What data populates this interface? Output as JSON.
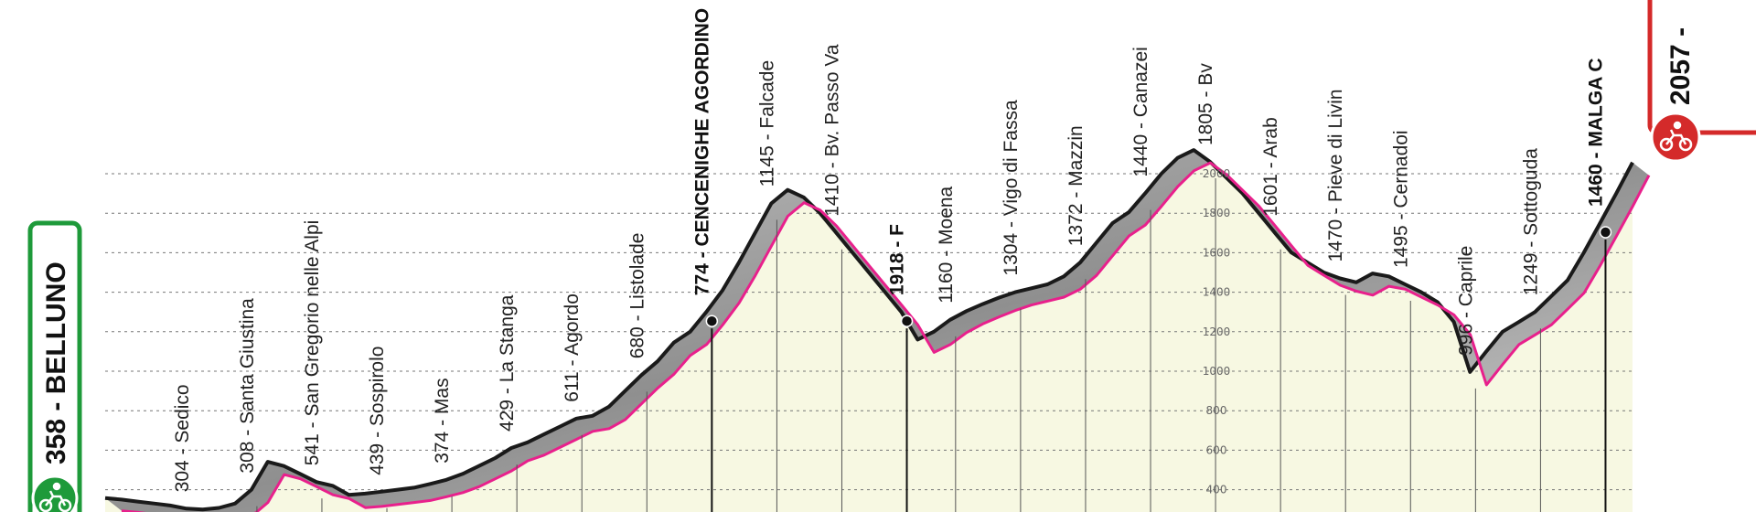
{
  "start": {
    "name": "BELLUNO",
    "elevation": "358",
    "label": "358 - BELLUNO",
    "color": "#1e9a3a"
  },
  "finish": {
    "label": "2057 - ",
    "elevation": "2057",
    "color": "#d42a2a"
  },
  "icons": {
    "start": "cyclist-icon",
    "finish": "cyclist-icon"
  },
  "colors": {
    "pink_line": "#e8208c",
    "road_fill": "#9a9a9a",
    "terrain_fill": "#f7f8e2",
    "grid": "#777777"
  },
  "chart_data": {
    "type": "area",
    "title": "",
    "xlabel": "",
    "ylabel": "",
    "ylim": [
      300,
      2200
    ],
    "yticks": [
      "400",
      "600",
      "800",
      "1000",
      "1200",
      "1400",
      "1600",
      "1800",
      "2000"
    ],
    "series": [
      {
        "values": [
          358,
          350,
          340,
          330,
          320,
          304,
          300,
          308,
          330,
          400,
          541,
          520,
          480,
          439,
          420,
          374,
          380,
          390,
          400,
          410,
          429,
          450,
          480,
          520,
          560,
          611,
          640,
          680,
          720,
          760,
          774,
          820,
          900,
          980,
          1050,
          1145,
          1200,
          1300,
          1410,
          1550,
          1700,
          1850,
          1918,
          1880,
          1800,
          1700,
          1600,
          1500,
          1400,
          1300,
          1160,
          1200,
          1260,
          1304,
          1340,
          1372,
          1400,
          1420,
          1440,
          1480,
          1550,
          1650,
          1750,
          1805,
          1900,
          2000,
          2080,
          2120,
          2060,
          1980,
          1900,
          1800,
          1700,
          1601,
          1550,
          1500,
          1470,
          1450,
          1495,
          1480,
          1440,
          1400,
          1350,
          1250,
          996,
          1100,
          1200,
          1249,
          1300,
          1380,
          1460,
          1600,
          1750,
          1900,
          2057
        ]
      }
    ],
    "locations": [
      {
        "label": "304 - Sedico",
        "major": false
      },
      {
        "label": "308 - Santa Giustina",
        "major": false
      },
      {
        "label": "541 - San Gregorio nelle Alpi",
        "major": false
      },
      {
        "label": "439 - Sospirolo",
        "major": false
      },
      {
        "label": "374 - Mas",
        "major": false
      },
      {
        "label": "429 - La Stanga",
        "major": false
      },
      {
        "label": "611 - Agordo",
        "major": false
      },
      {
        "label": "680 - Listolade",
        "major": false
      },
      {
        "label": "774 - CENCENIGHE AGORDINO",
        "major": true
      },
      {
        "label": "1145 - Falcade",
        "major": false
      },
      {
        "label": "1410 - Bv. Passo Va",
        "major": false
      },
      {
        "label": "1918 - F",
        "major": true
      },
      {
        "label": "1160 - Moena",
        "major": false
      },
      {
        "label": "1304 - Vigo di Fassa",
        "major": false
      },
      {
        "label": "1372 - Mazzin",
        "major": false
      },
      {
        "label": "1440 - Canazei",
        "major": false
      },
      {
        "label": "1805 - Bv",
        "major": false
      },
      {
        "label": "1601 - Arab",
        "major": false
      },
      {
        "label": "1470 - Pieve di Livin",
        "major": false
      },
      {
        "label": "1495 - Cernadoi",
        "major": false
      },
      {
        "label": "996 - Caprile",
        "major": false
      },
      {
        "label": "1249 - Sottoguda",
        "major": false
      },
      {
        "label": "1460 - MALGA C",
        "major": true
      }
    ]
  }
}
